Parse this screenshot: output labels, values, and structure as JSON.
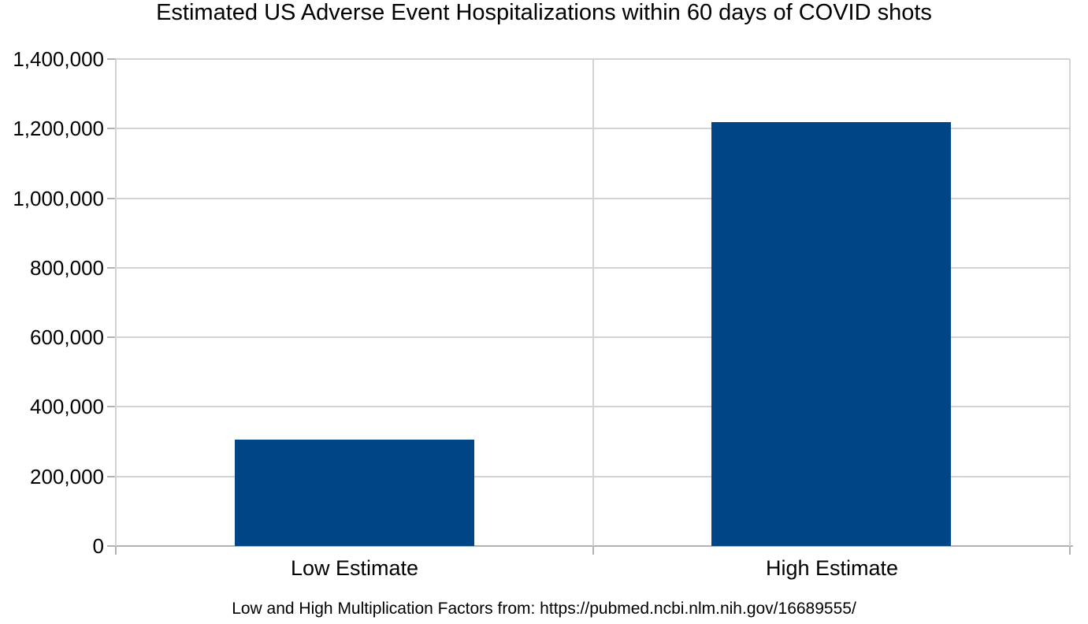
{
  "chart_data": {
    "type": "bar",
    "title": "Estimated US Adverse Event Hospitalizations within 60 days of COVID shots",
    "categories": [
      "Low Estimate",
      "High Estimate"
    ],
    "values": [
      305000,
      1218000
    ],
    "ylim": [
      0,
      1400000
    ],
    "yticks": [
      0,
      200000,
      400000,
      600000,
      800000,
      1000000,
      1200000,
      1400000
    ],
    "ytick_labels": [
      "0",
      "200,000",
      "400,000",
      "600,000",
      "800,000",
      "1,000,000",
      "1,200,000",
      "1,400,000"
    ],
    "grid": true,
    "legend": "none",
    "footnote": "Low and High Multiplication Factors from: https://pubmed.ncbi.nlm.nih.gov/16689555/"
  },
  "colors": {
    "bar_fill": "#004586",
    "gridline": "#d3d3d3",
    "axis_line": "#b3b3b3",
    "text": "#000000",
    "background": "#ffffff"
  }
}
